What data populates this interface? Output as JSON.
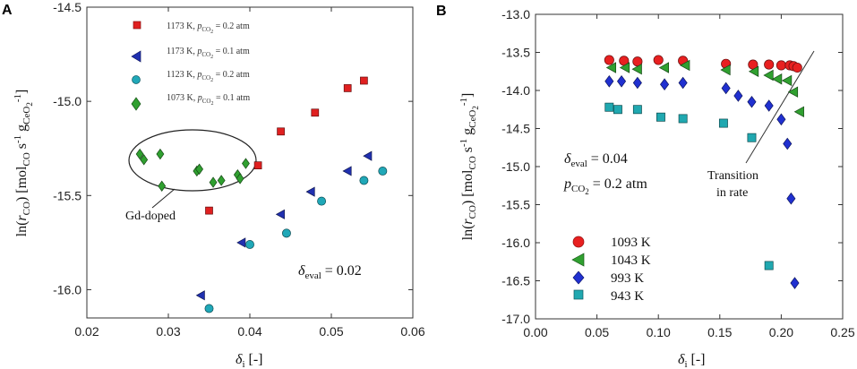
{
  "chart_data": [
    {
      "panel": "A",
      "type": "scatter",
      "xlabel": "δi [-]",
      "ylabel": "ln(rCO) [molCO s-1 gCeO2-1]",
      "xlim": [
        0.02,
        0.06
      ],
      "ylim": [
        -16.15,
        -14.5
      ],
      "xticks": [
        "0.02",
        "0.03",
        "0.04",
        "0.05",
        "0.06"
      ],
      "yticks": [
        "-14.5",
        "-15.0",
        "-15.5",
        "-16.0"
      ],
      "series": [
        {
          "name": "1173 K, pCO2 = 0.2 atm",
          "marker": "square",
          "color": "#e02020",
          "points": [
            [
              0.035,
              -15.58
            ],
            [
              0.041,
              -15.34
            ],
            [
              0.0438,
              -15.16
            ],
            [
              0.048,
              -15.06
            ],
            [
              0.052,
              -14.93
            ],
            [
              0.054,
              -14.89
            ]
          ]
        },
        {
          "name": "1173 K, pCO2 = 0.1 atm",
          "marker": "tri-left",
          "color": "#2030b0",
          "points": [
            [
              0.034,
              -16.03
            ],
            [
              0.039,
              -15.75
            ],
            [
              0.0438,
              -15.6
            ],
            [
              0.0475,
              -15.48
            ],
            [
              0.052,
              -15.37
            ],
            [
              0.0545,
              -15.29
            ]
          ]
        },
        {
          "name": "1123 K, pCO2 = 0.2 atm",
          "marker": "circle",
          "color": "#20a8b8",
          "points": [
            [
              0.035,
              -16.1
            ],
            [
              0.04,
              -15.76
            ],
            [
              0.0445,
              -15.7
            ],
            [
              0.0488,
              -15.53
            ],
            [
              0.054,
              -15.42
            ],
            [
              0.0563,
              -15.37
            ]
          ]
        },
        {
          "name": "1073 K, pCO2 = 0.1 atm",
          "marker": "diamond",
          "color": "#30a030",
          "points": [
            [
              0.0265,
              -15.28
            ],
            [
              0.027,
              -15.31
            ],
            [
              0.029,
              -15.28
            ],
            [
              0.0292,
              -15.45
            ],
            [
              0.0335,
              -15.37
            ],
            [
              0.0338,
              -15.36
            ],
            [
              0.0355,
              -15.43
            ],
            [
              0.0365,
              -15.42
            ],
            [
              0.0385,
              -15.39
            ],
            [
              0.0388,
              -15.41
            ],
            [
              0.0395,
              -15.33
            ]
          ]
        }
      ],
      "annotations": [
        "Gd-doped",
        "δeval = 0.02"
      ]
    },
    {
      "panel": "B",
      "type": "scatter",
      "xlabel": "δi [-]",
      "ylabel": "ln(rCO) [molCO s-1 gCeO2-1]",
      "xlim": [
        0.0,
        0.25
      ],
      "ylim": [
        -17.0,
        -13.0
      ],
      "xticks": [
        "0.00",
        "0.05",
        "0.10",
        "0.15",
        "0.20",
        "0.25"
      ],
      "yticks": [
        "-13.0",
        "-13.5",
        "-14.0",
        "-14.5",
        "-15.0",
        "-15.5",
        "-16.0",
        "-16.5",
        "-17.0"
      ],
      "series": [
        {
          "name": "1093 K",
          "marker": "circle",
          "color": "#e82020",
          "points": [
            [
              0.06,
              -13.6
            ],
            [
              0.072,
              -13.61
            ],
            [
              0.083,
              -13.62
            ],
            [
              0.1,
              -13.6
            ],
            [
              0.12,
              -13.61
            ],
            [
              0.155,
              -13.65
            ],
            [
              0.177,
              -13.66
            ],
            [
              0.19,
              -13.66
            ],
            [
              0.2,
              -13.67
            ],
            [
              0.207,
              -13.67
            ],
            [
              0.21,
              -13.68
            ],
            [
              0.213,
              -13.7
            ]
          ]
        },
        {
          "name": "1043 K",
          "marker": "tri-left",
          "color": "#30a030",
          "points": [
            [
              0.062,
              -13.7
            ],
            [
              0.073,
              -13.7
            ],
            [
              0.083,
              -13.72
            ],
            [
              0.105,
              -13.7
            ],
            [
              0.122,
              -13.67
            ],
            [
              0.155,
              -13.73
            ],
            [
              0.178,
              -13.75
            ],
            [
              0.19,
              -13.8
            ],
            [
              0.197,
              -13.85
            ],
            [
              0.205,
              -13.87
            ],
            [
              0.21,
              -14.02
            ],
            [
              0.215,
              -14.28
            ]
          ]
        },
        {
          "name": "993 K",
          "marker": "diamond",
          "color": "#2030d0",
          "points": [
            [
              0.06,
              -13.88
            ],
            [
              0.07,
              -13.88
            ],
            [
              0.083,
              -13.9
            ],
            [
              0.105,
              -13.92
            ],
            [
              0.12,
              -13.9
            ],
            [
              0.155,
              -13.97
            ],
            [
              0.165,
              -14.07
            ],
            [
              0.176,
              -14.15
            ],
            [
              0.19,
              -14.2
            ],
            [
              0.2,
              -14.38
            ],
            [
              0.205,
              -14.7
            ],
            [
              0.208,
              -15.42
            ],
            [
              0.211,
              -16.53
            ]
          ]
        },
        {
          "name": "943 K",
          "marker": "square",
          "color": "#20a8b0",
          "points": [
            [
              0.06,
              -14.22
            ],
            [
              0.067,
              -14.25
            ],
            [
              0.083,
              -14.25
            ],
            [
              0.102,
              -14.35
            ],
            [
              0.12,
              -14.37
            ],
            [
              0.153,
              -14.43
            ],
            [
              0.176,
              -14.62
            ],
            [
              0.19,
              -16.3
            ]
          ]
        }
      ],
      "annotations": [
        "Transition",
        "in rate",
        "δeval = 0.04",
        "pCO2 = 0.2 atm"
      ]
    }
  ],
  "text": {
    "panelA": "A",
    "panelB": "B",
    "yl_ln": "ln(",
    "yl_r": "r",
    "yl_co": "CO",
    "yl_close": ") [mol",
    "yl_s": " s",
    "yl_m1": "-1",
    "yl_g": " g",
    "yl_ceo": "CeO",
    "yl_2": "2",
    "yl_end": "]",
    "xl_delta": "δ",
    "xl_i": "i",
    "xl_unit": " [-]",
    "legA": [
      {
        "temp": "1173 K, ",
        "p": "p",
        "sub": "CO",
        "sub2": "2",
        "val": " = 0.2 atm"
      },
      {
        "temp": "1173 K, ",
        "p": "p",
        "sub": "CO",
        "sub2": "2",
        "val": " = 0.1 atm"
      },
      {
        "temp": "1123 K, ",
        "p": "p",
        "sub": "CO",
        "sub2": "2",
        "val": " = 0.2 atm"
      },
      {
        "temp": "1073 K, ",
        "p": "p",
        "sub": "CO",
        "sub2": "2",
        "val": " = 0.1 atm"
      }
    ],
    "legB": [
      "1093 K",
      "1043 K",
      "993 K",
      "943 K"
    ],
    "gd": "Gd-doped",
    "evalA_d": "δ",
    "evalA_sub": "eval",
    "evalA_val": " = 0.02",
    "evalB_d": "δ",
    "evalB_sub": "eval",
    "evalB_val": " = 0.04",
    "pB_p": "p",
    "pB_sub": "CO",
    "pB_sub2": "2",
    "pB_val": " = 0.2 atm",
    "trans1": "Transition",
    "trans2": "in rate"
  }
}
